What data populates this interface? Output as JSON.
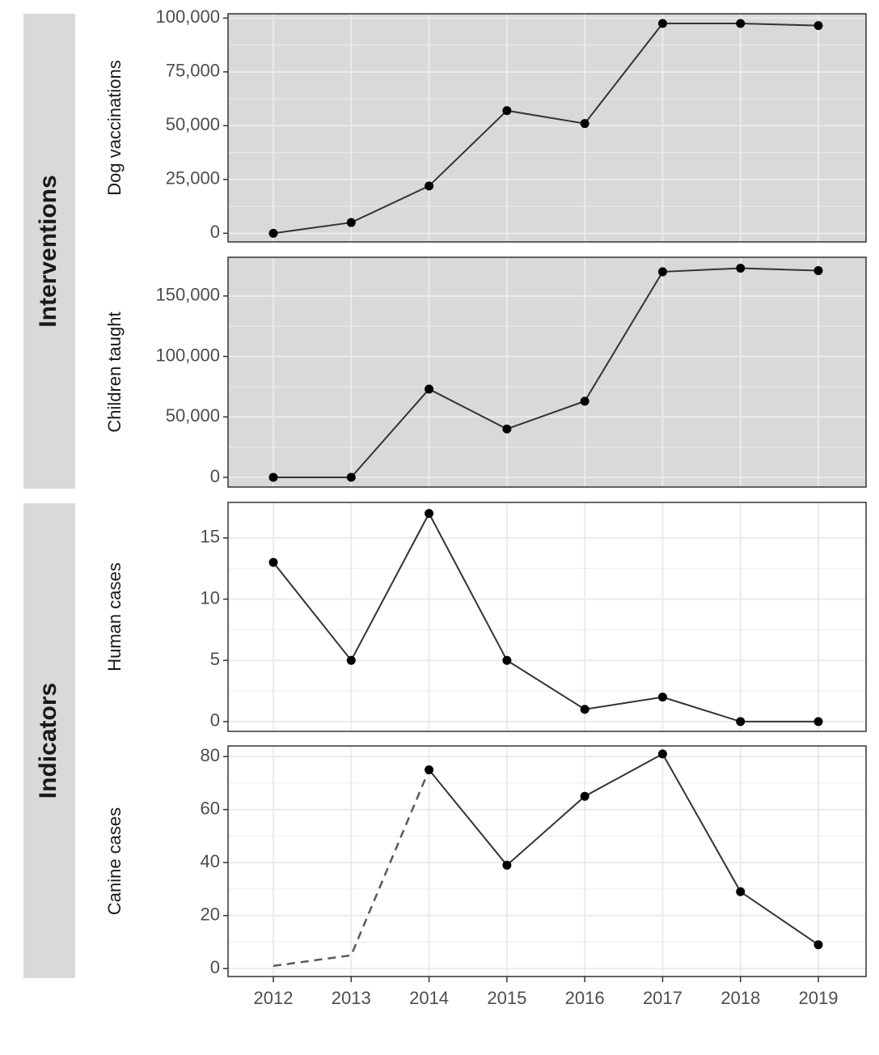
{
  "groups": [
    {
      "label": "Interventions",
      "panels": [
        0,
        1
      ]
    },
    {
      "label": "Indicators",
      "panels": [
        2,
        3
      ]
    }
  ],
  "colors": {
    "strip_fill": "#d9d9d9",
    "shaded_panel_bg": "#d9d9d9",
    "shaded_grid": "#ebebeb",
    "plain_panel_bg": "#ffffff",
    "plain_grid": "#ebebeb",
    "line": "#333333",
    "point": "#000000",
    "dashed_line": "#595959"
  },
  "chart_data": [
    {
      "type": "line",
      "ylabel": "Dog vaccinations",
      "background": "shaded",
      "ylim": [
        -4000,
        102000
      ],
      "yticks": [
        0,
        25000,
        50000,
        75000,
        100000
      ],
      "ytick_labels": [
        "0",
        "25,000",
        "50,000",
        "75,000",
        "100,000"
      ],
      "x": [
        2012,
        2013,
        2014,
        2015,
        2016,
        2017,
        2018,
        2019
      ],
      "values": [
        0,
        5000,
        22000,
        57000,
        51000,
        97500,
        97500,
        96500
      ]
    },
    {
      "type": "line",
      "ylabel": "Children taught",
      "background": "shaded",
      "ylim": [
        -8000,
        182000
      ],
      "yticks": [
        0,
        50000,
        100000,
        150000
      ],
      "ytick_labels": [
        "0",
        "50,000",
        "100,000",
        "150,000"
      ],
      "x": [
        2012,
        2013,
        2014,
        2015,
        2016,
        2017,
        2018,
        2019
      ],
      "values": [
        0,
        0,
        73000,
        40000,
        63000,
        170000,
        173000,
        171000
      ]
    },
    {
      "type": "line",
      "ylabel": "Human cases",
      "background": "plain",
      "ylim": [
        -0.8,
        17.9
      ],
      "yticks": [
        0,
        5,
        10,
        15
      ],
      "ytick_labels": [
        "0",
        "5",
        "10",
        "15"
      ],
      "x": [
        2012,
        2013,
        2014,
        2015,
        2016,
        2017,
        2018,
        2019
      ],
      "values": [
        13,
        5,
        17,
        5,
        1,
        2,
        0,
        0
      ]
    },
    {
      "type": "line",
      "ylabel": "Canine cases",
      "background": "plain",
      "ylim": [
        -3,
        84
      ],
      "yticks": [
        0,
        20,
        40,
        60,
        80
      ],
      "ytick_labels": [
        "0",
        "20",
        "40",
        "60",
        "80"
      ],
      "x": [
        2012,
        2013,
        2014,
        2015,
        2016,
        2017,
        2018,
        2019
      ],
      "values": [
        1,
        5,
        75,
        39,
        65,
        81,
        29,
        9
      ],
      "dashed_segment_x": [
        2012,
        2013,
        2014
      ],
      "points_x": [
        2014,
        2015,
        2016,
        2017,
        2018,
        2019
      ],
      "xticks": [
        2012,
        2013,
        2014,
        2015,
        2016,
        2017,
        2018,
        2019
      ],
      "xtick_labels": [
        "2012",
        "2013",
        "2014",
        "2015",
        "2016",
        "2017",
        "2018",
        "2019"
      ]
    }
  ]
}
